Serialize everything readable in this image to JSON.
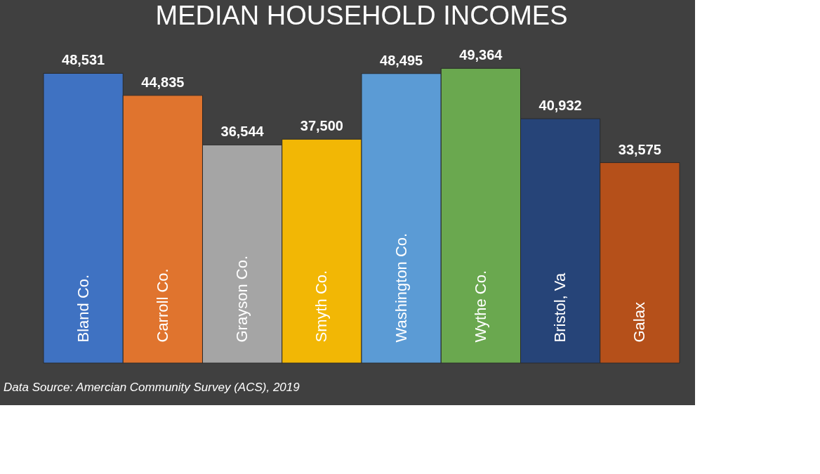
{
  "chart_data": {
    "type": "bar",
    "title": "MEDIAN HOUSEHOLD INCOMES",
    "categories": [
      "Bland Co.",
      "Carroll Co.",
      "Grayson Co.",
      "Smyth Co.",
      "Washington Co.",
      "Wythe Co.",
      "Bristol, Va",
      "Galax"
    ],
    "values": [
      48531,
      44835,
      36544,
      37500,
      48495,
      49364,
      40932,
      33575
    ],
    "colors": [
      "#3f72c2",
      "#e0742e",
      "#a5a5a5",
      "#f2b705",
      "#5b9bd5",
      "#6aa84f",
      "#264478",
      "#b5501a"
    ],
    "value_labels": [
      "48,531",
      "44,835",
      "36,544",
      "37,500",
      "48,495",
      "49,364",
      "40,932",
      "33,575"
    ],
    "annotations": [
      "Data Source: Amercian Community Survey (ACS), 2019"
    ]
  }
}
